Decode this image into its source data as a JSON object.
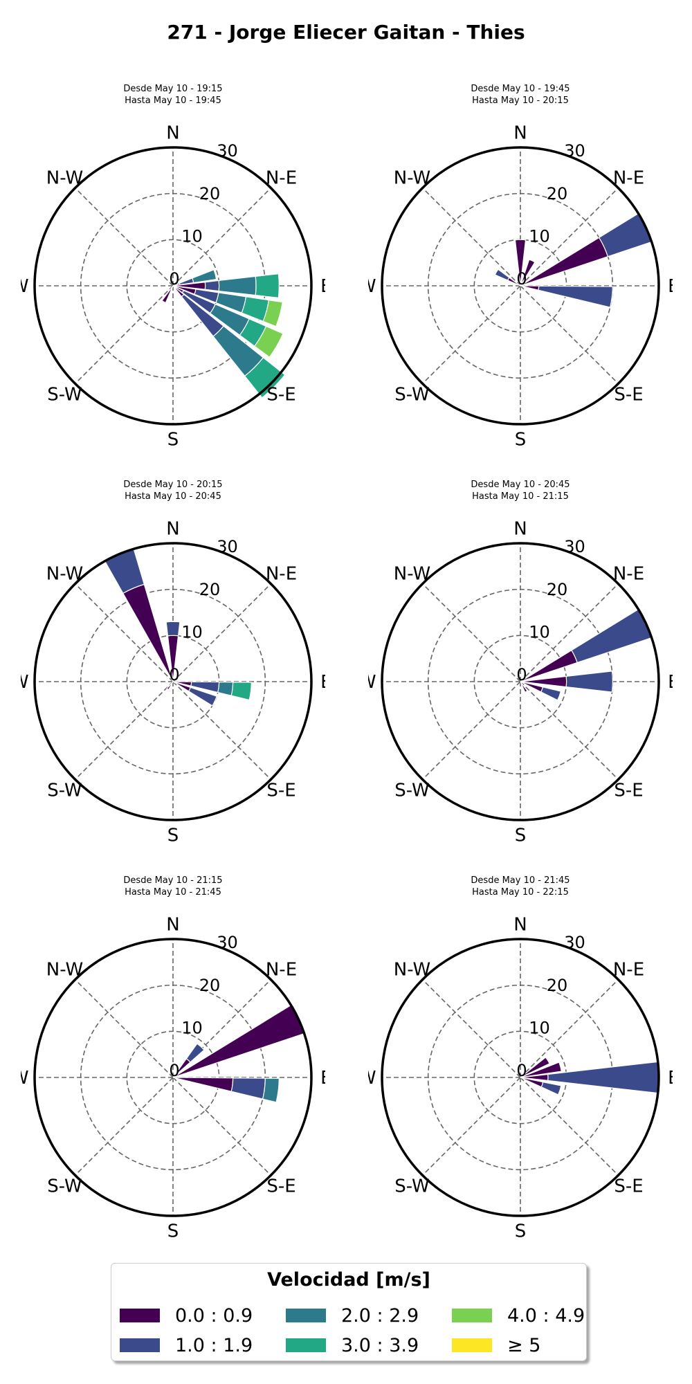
{
  "title": "271 - Jorge Eliecer Gaitan - Thies",
  "legend": {
    "title": "Velocidad [m/s]",
    "bins": [
      {
        "label": "0.0 : 0.9",
        "color": "#440154"
      },
      {
        "label": "1.0 : 1.9",
        "color": "#3b4a8a"
      },
      {
        "label": "2.0 : 2.9",
        "color": "#2c7a8c"
      },
      {
        "label": "3.0 : 3.9",
        "color": "#22a884"
      },
      {
        "label": "4.0 : 4.9",
        "color": "#7ad151"
      },
      {
        "label": "≥ 5",
        "color": "#fde725"
      }
    ]
  },
  "chart_data": [
    {
      "type": "windrose",
      "desde": "Desde May 10 - 19:15",
      "hasta": "Hasta May 10 - 19:45",
      "directions": [
        "N",
        "N-E",
        "E",
        "S-E",
        "S",
        "S-W",
        "W",
        "N-W"
      ],
      "rlim": [
        0,
        30
      ],
      "rticks": [
        0,
        10,
        20,
        30
      ],
      "sectors": [
        {
          "angle": 75,
          "stacks": [
            [
              0,
              1.5
            ],
            [
              1.5,
              4.5
            ],
            [
              4.5,
              9.5
            ]
          ]
        },
        {
          "angle": 90,
          "stacks": [
            [
              0,
              7
            ],
            [
              7,
              10
            ],
            [
              10,
              18
            ],
            [
              18,
              23
            ]
          ]
        },
        {
          "angle": 105,
          "stacks": [
            [
              0,
              5
            ],
            [
              5,
              10
            ],
            [
              10,
              16
            ],
            [
              16,
              21
            ],
            [
              21,
              24
            ]
          ]
        },
        {
          "angle": 120,
          "stacks": [
            [
              0,
              2.5
            ],
            [
              2.5,
              10
            ],
            [
              10,
              18
            ],
            [
              18,
              22
            ],
            [
              22,
              26
            ]
          ]
        },
        {
          "angle": 135,
          "stacks": [
            [
              0,
              3
            ],
            [
              3,
              14
            ],
            [
              14,
              25
            ],
            [
              25,
              31
            ]
          ]
        },
        {
          "angle": 210,
          "stacks": [
            [
              0,
              4
            ]
          ]
        }
      ]
    },
    {
      "type": "windrose",
      "desde": "Desde May 10 - 19:45",
      "hasta": "Hasta May 10 - 20:15",
      "directions": [
        "N",
        "N-E",
        "E",
        "S-E",
        "S",
        "S-W",
        "W",
        "N-W"
      ],
      "rlim": [
        0,
        30
      ],
      "rticks": [
        0,
        10,
        20,
        30
      ],
      "sectors": [
        {
          "angle": 0,
          "stacks": [
            [
              0,
              10
            ]
          ]
        },
        {
          "angle": 25,
          "stacks": [
            [
              0,
              6
            ]
          ]
        },
        {
          "angle": 65,
          "stacks": [
            [
              0,
              20
            ],
            [
              20,
              30
            ]
          ]
        },
        {
          "angle": 97,
          "stacks": [
            [
              0,
              4
            ],
            [
              4,
              20
            ]
          ]
        },
        {
          "angle": 300,
          "stacks": [
            [
              0,
              3
            ],
            [
              3,
              6
            ]
          ]
        }
      ]
    },
    {
      "type": "windrose",
      "desde": "Desde May 10 - 20:15",
      "hasta": "Hasta May 10 - 20:45",
      "directions": [
        "N",
        "N-E",
        "E",
        "S-E",
        "S",
        "S-W",
        "W",
        "N-W"
      ],
      "rlim": [
        0,
        30
      ],
      "rticks": [
        0,
        10,
        20,
        30
      ],
      "sectors": [
        {
          "angle": 0,
          "stacks": [
            [
              0,
              10
            ],
            [
              10,
              13
            ]
          ]
        },
        {
          "angle": 337,
          "stacks": [
            [
              0,
              22
            ],
            [
              22,
              30
            ]
          ]
        },
        {
          "angle": 97,
          "stacks": [
            [
              0,
              4
            ],
            [
              4,
              10
            ],
            [
              10,
              13
            ],
            [
              13,
              17
            ]
          ]
        },
        {
          "angle": 115,
          "stacks": [
            [
              0,
              4
            ],
            [
              4,
              10
            ]
          ]
        },
        {
          "angle": 215,
          "stacks": [
            [
              0,
              2
            ]
          ]
        }
      ]
    },
    {
      "type": "windrose",
      "desde": "Desde May 10 - 20:45",
      "hasta": "Hasta May 10 - 21:15",
      "directions": [
        "N",
        "N-E",
        "E",
        "S-E",
        "S",
        "S-W",
        "W",
        "N-W"
      ],
      "rlim": [
        0,
        30
      ],
      "rticks": [
        0,
        10,
        20,
        30
      ],
      "sectors": [
        {
          "angle": 65,
          "stacks": [
            [
              0,
              13
            ],
            [
              13,
              30
            ]
          ]
        },
        {
          "angle": 90,
          "stacks": [
            [
              0,
              10
            ],
            [
              10,
              20
            ]
          ]
        },
        {
          "angle": 110,
          "stacks": [
            [
              0,
              5
            ],
            [
              5,
              9
            ]
          ]
        },
        {
          "angle": 150,
          "stacks": [
            [
              0,
              2.5
            ]
          ]
        }
      ]
    },
    {
      "type": "windrose",
      "desde": "Desde May 10 - 21:15",
      "hasta": "Hasta May 10 - 21:45",
      "directions": [
        "N",
        "N-E",
        "E",
        "S-E",
        "S",
        "S-W",
        "W",
        "N-W"
      ],
      "rlim": [
        0,
        30
      ],
      "rticks": [
        0,
        10,
        20,
        30
      ],
      "sectors": [
        {
          "angle": 42,
          "stacks": [
            [
              0,
              5
            ],
            [
              5,
              9
            ]
          ]
        },
        {
          "angle": 65,
          "stacks": [
            [
              0,
              30
            ]
          ]
        },
        {
          "angle": 97,
          "stacks": [
            [
              0,
              13
            ],
            [
              13,
              20
            ],
            [
              20,
              23
            ]
          ]
        }
      ]
    },
    {
      "type": "windrose",
      "desde": "Desde May 10 - 21:45",
      "hasta": "Hasta May 10 - 22:15",
      "directions": [
        "N",
        "N-E",
        "E",
        "S-E",
        "S",
        "S-W",
        "W",
        "N-W"
      ],
      "rlim": [
        0,
        30
      ],
      "rticks": [
        0,
        10,
        20,
        30
      ],
      "sectors": [
        {
          "angle": 58,
          "stacks": [
            [
              0,
              7
            ]
          ]
        },
        {
          "angle": 75,
          "stacks": [
            [
              0,
              9
            ]
          ]
        },
        {
          "angle": 90,
          "stacks": [
            [
              0,
              6
            ],
            [
              6,
              30
            ]
          ]
        },
        {
          "angle": 108,
          "stacks": [
            [
              0,
              5
            ],
            [
              5,
              9
            ]
          ]
        }
      ]
    }
  ]
}
